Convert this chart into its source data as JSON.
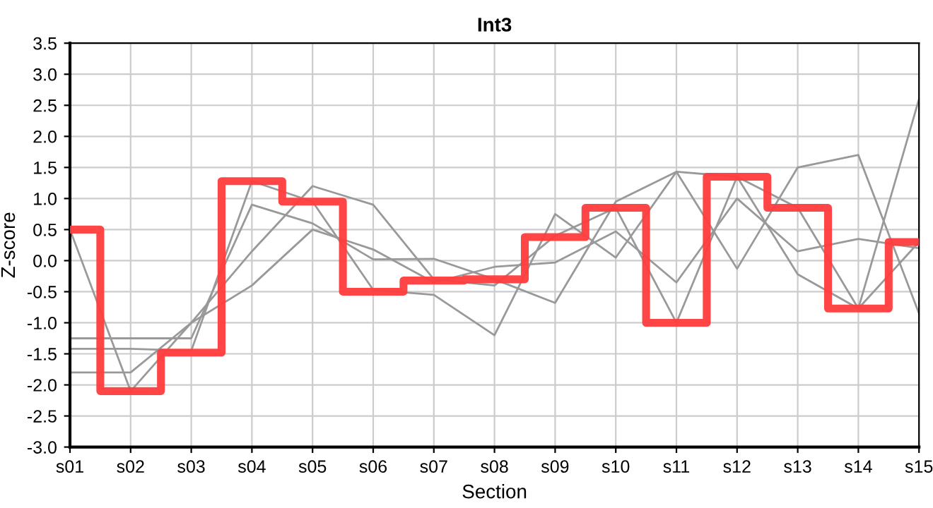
{
  "chart_data": {
    "type": "line",
    "title": "Int3",
    "xlabel": "Section",
    "ylabel": "Z-score",
    "categories": [
      "s01",
      "s02",
      "s03",
      "s04",
      "s05",
      "s06",
      "s07",
      "s08",
      "s09",
      "s10",
      "s11",
      "s12",
      "s13",
      "s14",
      "s15"
    ],
    "series": [
      {
        "color": "#999999",
        "values": [
          0.5,
          -2.1,
          -1.0,
          -0.4,
          0.5,
          0.18,
          -0.35,
          -0.1,
          -0.03,
          0.47,
          -0.35,
          1.0,
          0.15,
          0.35,
          0.2
        ]
      },
      {
        "color": "#999999",
        "values": [
          -1.25,
          -1.25,
          -1.25,
          0.9,
          0.6,
          0.02,
          0.03,
          -0.3,
          -0.68,
          0.95,
          1.43,
          1.35,
          0.85,
          -0.77,
          2.6
        ]
      },
      {
        "color": "#999999",
        "values": [
          -1.42,
          -1.42,
          -1.45,
          1.28,
          0.95,
          -0.47,
          -0.55,
          -1.2,
          0.75,
          0.05,
          1.43,
          -0.13,
          1.5,
          1.7,
          -0.85
        ]
      },
      {
        "color": "#999999",
        "values": [
          -1.8,
          -1.8,
          -1.0,
          0.15,
          1.2,
          0.9,
          -0.3,
          -0.4,
          0.4,
          0.85,
          -1.0,
          1.35,
          -0.22,
          -0.77,
          0.3
        ]
      },
      {
        "type": "step",
        "color": "#ff3b3b",
        "values": [
          0.5,
          -2.1,
          -1.48,
          1.28,
          0.95,
          -0.5,
          -0.32,
          -0.3,
          0.38,
          0.85,
          -1.0,
          1.35,
          0.85,
          -0.77,
          0.3
        ]
      }
    ],
    "ylim": [
      -3,
      3.5
    ],
    "yticks": [
      {
        "value": -3,
        "label": "-3.0"
      },
      -2.5,
      {
        "value": -2,
        "label": "-2.0"
      },
      -1.5,
      {
        "value": -1,
        "label": "-1.0"
      },
      -0.5,
      {
        "value": 0,
        "label": "0.0"
      },
      0.5,
      {
        "value": 1,
        "label": "1.0"
      },
      1.5,
      {
        "value": 2,
        "label": "2.0"
      },
      2.5,
      {
        "value": 3,
        "label": "3.0"
      },
      3.5
    ],
    "grid": true
  }
}
